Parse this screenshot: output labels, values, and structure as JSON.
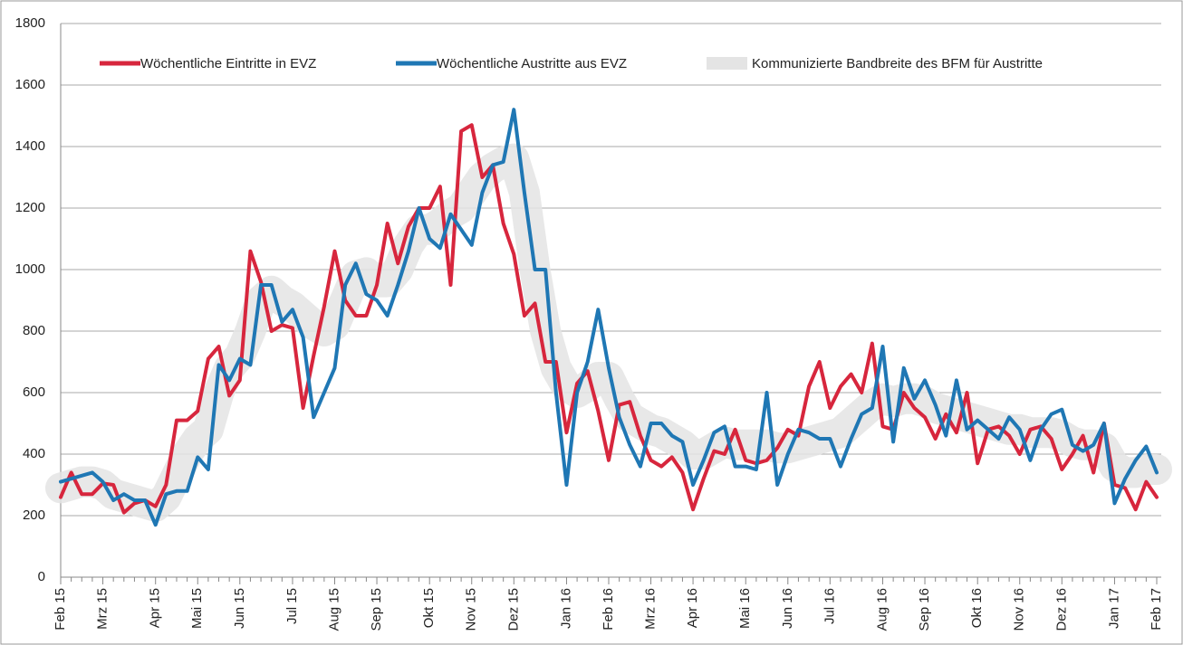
{
  "chart_data": {
    "type": "line",
    "categories": [
      "Feb 15",
      null,
      null,
      null,
      "Mrz 15",
      null,
      null,
      null,
      null,
      "Apr 15",
      null,
      null,
      null,
      "Mai 15",
      null,
      null,
      null,
      "Jun 15",
      null,
      null,
      null,
      null,
      "Jul 15",
      null,
      null,
      null,
      "Aug 15",
      null,
      null,
      null,
      "Sep 15",
      null,
      null,
      null,
      null,
      "Okt 15",
      null,
      null,
      null,
      "Nov 15",
      null,
      null,
      null,
      "Dez 15",
      null,
      null,
      null,
      null,
      "Jan 16",
      null,
      null,
      null,
      "Feb 16",
      null,
      null,
      null,
      "Mrz 16",
      null,
      null,
      null,
      "Apr 16",
      null,
      null,
      null,
      null,
      "Mai 16",
      null,
      null,
      null,
      "Jun 16",
      null,
      null,
      null,
      "Jul 16",
      null,
      null,
      null,
      null,
      "Aug 16",
      null,
      null,
      null,
      "Sep 16",
      null,
      null,
      null,
      null,
      "Okt 16",
      null,
      null,
      null,
      "Nov 16",
      null,
      null,
      null,
      "Dez 16",
      null,
      null,
      null,
      null,
      "Jan 17",
      null,
      null,
      null,
      "Feb 17"
    ],
    "series": [
      {
        "name": "Kommunizierte Bandbreite des BFM für Austritte",
        "color": "#e4e4e4",
        "band": true,
        "values": [
          290,
          300,
          310,
          310,
          300,
          270,
          260,
          250,
          240,
          230,
          260,
          330,
          400,
          450,
          480,
          600,
          680,
          720,
          800,
          900,
          930,
          900,
          880,
          850,
          820,
          800,
          820,
          900,
          980,
          990,
          960,
          960,
          1000,
          1080,
          1130,
          1130,
          1150,
          1180,
          1200,
          1250,
          1300,
          1330,
          1350,
          1360,
          1250,
          1000,
          800,
          680,
          620,
          600,
          620,
          650,
          650,
          580,
          520,
          500,
          480,
          470,
          450,
          430,
          400,
          400,
          420,
          440,
          430,
          430,
          430,
          430,
          420,
          420,
          430,
          440,
          450,
          460,
          470,
          500,
          530,
          560,
          580,
          570,
          580,
          580,
          570,
          550,
          540,
          530,
          520,
          510,
          500,
          490,
          480,
          480,
          470,
          470,
          470,
          460,
          440,
          430,
          430,
          420,
          360,
          340,
          340,
          350,
          350
        ]
      },
      {
        "name": "Wöchentliche Eintritte in EVZ",
        "color": "#d7263d",
        "values": [
          260,
          340,
          270,
          270,
          305,
          300,
          210,
          240,
          250,
          230,
          300,
          510,
          510,
          540,
          710,
          750,
          590,
          640,
          1060,
          960,
          800,
          820,
          810,
          550,
          720,
          880,
          1060,
          900,
          850,
          850,
          950,
          1150,
          1020,
          1140,
          1200,
          1200,
          1270,
          950,
          1450,
          1470,
          1300,
          1340,
          1150,
          1050,
          850,
          890,
          700,
          700,
          470,
          630,
          670,
          540,
          380,
          560,
          570,
          460,
          380,
          360,
          390,
          340,
          220,
          320,
          410,
          400,
          480,
          380,
          370,
          380,
          420,
          480,
          460,
          620,
          700,
          550,
          620,
          660,
          600,
          760,
          490,
          480,
          600,
          550,
          520,
          450,
          530,
          470,
          600,
          370,
          480,
          490,
          460,
          400,
          480,
          490,
          450,
          350,
          400,
          460,
          340,
          500,
          300,
          290,
          220,
          310,
          260
        ]
      },
      {
        "name": "Wöchentliche Austritte aus EVZ",
        "color": "#1f77b4",
        "values": [
          310,
          320,
          330,
          340,
          310,
          250,
          270,
          250,
          250,
          170,
          270,
          280,
          280,
          390,
          350,
          690,
          640,
          710,
          690,
          950,
          950,
          830,
          870,
          780,
          520,
          600,
          680,
          950,
          1020,
          920,
          900,
          850,
          950,
          1060,
          1200,
          1100,
          1070,
          1180,
          1130,
          1080,
          1250,
          1340,
          1350,
          1520,
          1250,
          1000,
          1000,
          600,
          300,
          600,
          700,
          870,
          680,
          520,
          430,
          360,
          500,
          500,
          460,
          440,
          300,
          380,
          470,
          490,
          360,
          360,
          350,
          600,
          300,
          400,
          480,
          470,
          450,
          450,
          360,
          450,
          530,
          550,
          750,
          440,
          680,
          580,
          640,
          560,
          460,
          640,
          480,
          510,
          480,
          450,
          520,
          480,
          380,
          480,
          530,
          545,
          430,
          410,
          430,
          500,
          240,
          320,
          380,
          425,
          340
        ]
      }
    ],
    "ylim": [
      0,
      1800
    ],
    "yticks": [
      0,
      200,
      400,
      600,
      800,
      1000,
      1200,
      1400,
      1600,
      1800
    ],
    "grid": true
  }
}
